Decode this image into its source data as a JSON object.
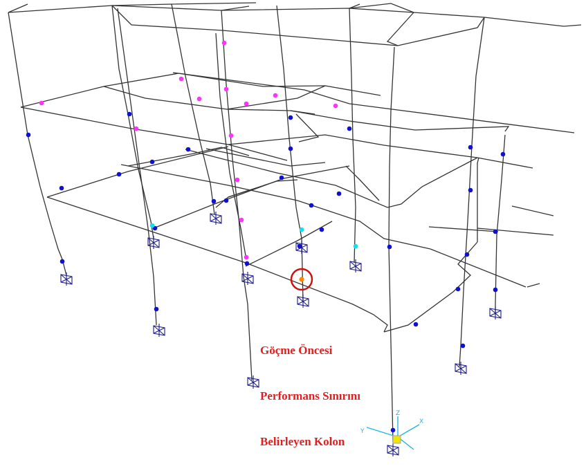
{
  "annotation": {
    "lines": [
      "Göçme Öncesi",
      "Performans Sınırını",
      "Belirleyen Kolon"
    ],
    "color": "#e02020"
  },
  "axes_triad": {
    "labels": {
      "z": "Z",
      "y": "Y",
      "x": "X"
    },
    "color": "#1fb6e6",
    "origin_color": "#f2e400"
  },
  "colors": {
    "frame_line": "#333333",
    "support": "#1a1a8a",
    "hinge_io": "#1010d0",
    "hinge_ls": "#ff33ff",
    "hinge_cp": "#11e0ee",
    "hinge_critical": "#ff8800",
    "highlight_circle": "#cc1111"
  }
}
